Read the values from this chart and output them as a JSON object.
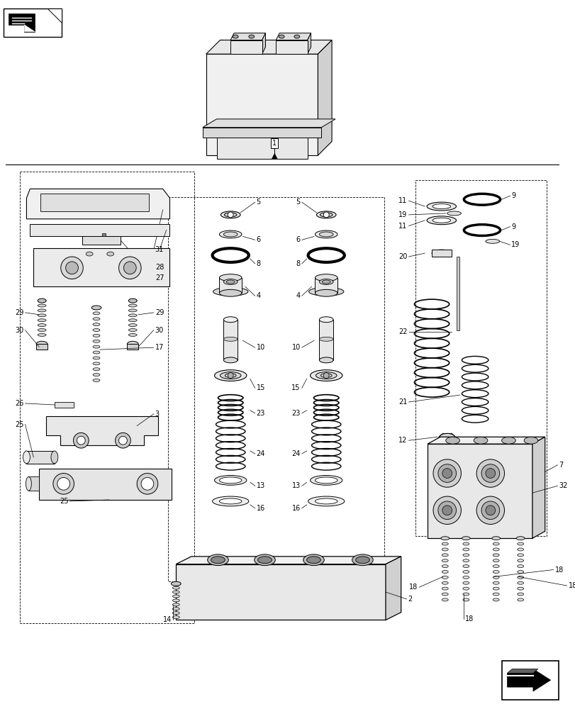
{
  "bg_color": "#ffffff",
  "lc": "#000000",
  "fig_width": 8.12,
  "fig_height": 10.0,
  "dpi": 100
}
